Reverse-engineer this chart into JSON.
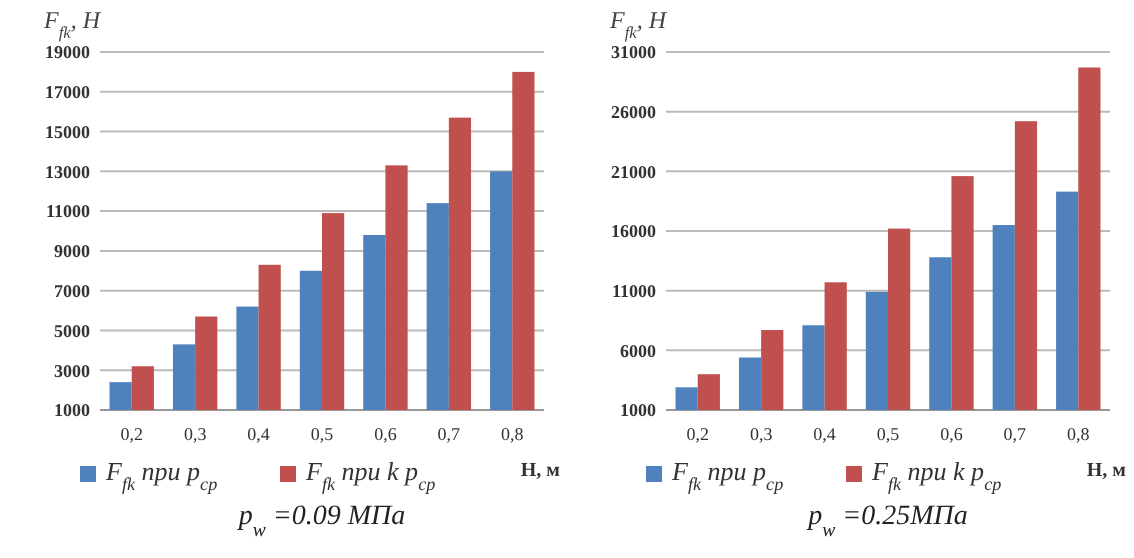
{
  "chart_data": [
    {
      "type": "bar",
      "title": "p$_{w}$ =0.09 МПа",
      "ylabel": "F$_{fk}$, Н",
      "xlabel": "H, м",
      "categories": [
        "0,2",
        "0,3",
        "0,4",
        "0,5",
        "0,6",
        "0,7",
        "0,8"
      ],
      "series": [
        {
          "name": "F$_{fk}$ при p$_{ср}$",
          "color": "#4f81bd",
          "values": [
            2400,
            4300,
            6200,
            8000,
            9800,
            11400,
            13000
          ]
        },
        {
          "name": "F$_{fk}$ при k p$_{ср}$",
          "color": "#c0504d",
          "values": [
            3200,
            5700,
            8300,
            10900,
            13300,
            15700,
            18000
          ]
        }
      ],
      "ylim": [
        1000,
        19000
      ],
      "yticks": [
        1000,
        3000,
        5000,
        7000,
        9000,
        11000,
        13000,
        15000,
        17000,
        19000
      ],
      "grid": "y",
      "legend": "bottom"
    },
    {
      "type": "bar",
      "title": "p$_{w}$ =0.25МПа",
      "ylabel": "F$_{fk}$, Н",
      "xlabel": "H, м",
      "categories": [
        "0,2",
        "0,3",
        "0,4",
        "0,5",
        "0,6",
        "0,7",
        "0,8"
      ],
      "series": [
        {
          "name": "F$_{fk}$ при p$_{ср}$",
          "color": "#4f81bd",
          "values": [
            2900,
            5400,
            8100,
            10900,
            13800,
            16500,
            19300
          ]
        },
        {
          "name": "F$_{fk}$ при k p$_{ср}$",
          "color": "#c0504d",
          "values": [
            4000,
            7700,
            11700,
            16200,
            20600,
            25200,
            29700
          ]
        }
      ],
      "ylim": [
        1000,
        31000
      ],
      "yticks": [
        1000,
        6000,
        11000,
        16000,
        21000,
        26000,
        31000
      ],
      "grid": "y",
      "legend": "bottom"
    }
  ]
}
